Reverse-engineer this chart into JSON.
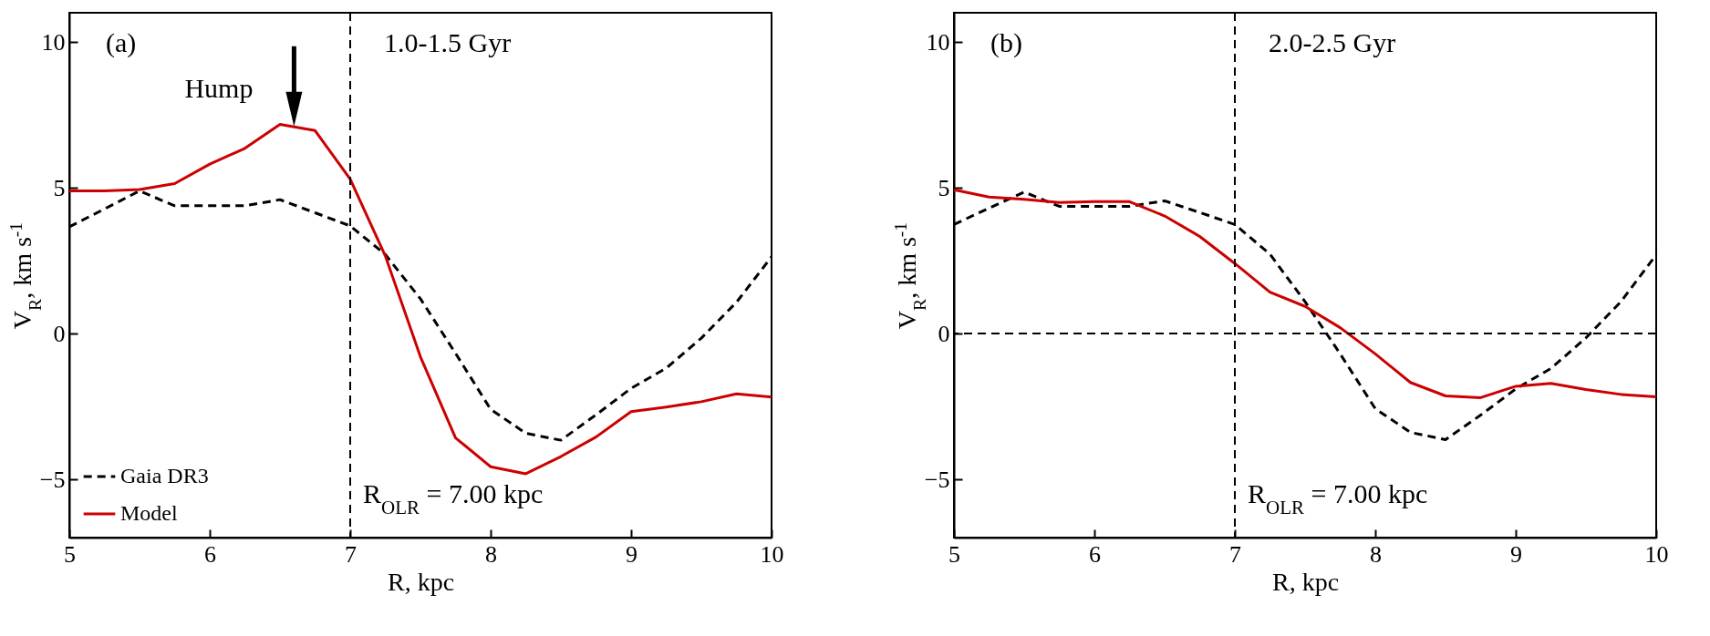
{
  "chart_data": [
    {
      "type": "line",
      "xlabel": "R, kpc",
      "ylabel": "V$_{R}$, km s$^{-1}$",
      "xlim": [
        5,
        10
      ],
      "xticks": [
        5,
        6,
        7,
        8,
        9,
        10
      ],
      "ylim": [
        -7,
        11
      ],
      "yticks": [
        -5,
        0,
        5,
        10
      ],
      "legend": "bottom left",
      "grid": false,
      "x": [
        5,
        5.25,
        5.5,
        5.75,
        6,
        6.25,
        6.5,
        6.75,
        7,
        7.25,
        7.5,
        7.75,
        8,
        8.25,
        8.5,
        8.75,
        9,
        9.25,
        9.5,
        9.75,
        10
      ],
      "series": [
        {
          "name": "Gaia DR3",
          "color": "#000000",
          "line_style": "dashed",
          "values": [
            3.66,
            4.27,
            4.89,
            4.38,
            4.38,
            4.38,
            4.59,
            4.14,
            3.69,
            2.71,
            1.19,
            -0.68,
            -2.6,
            -3.42,
            -3.66,
            -2.79,
            -1.88,
            -1.19,
            -0.16,
            1.07,
            2.63
          ]
        },
        {
          "name": "Model",
          "color": "#cc0000",
          "line_style": "solid",
          "values": [
            4.89,
            4.89,
            4.94,
            5.14,
            5.81,
            6.35,
            7.17,
            6.96,
            5.29,
            2.66,
            -0.8,
            -3.58,
            -4.57,
            -4.81,
            -4.22,
            -3.55,
            -2.68,
            -2.52,
            -2.34,
            -2.07,
            -2.18
          ]
        }
      ],
      "ref_lines": [
        {
          "axis": "x",
          "value": 7,
          "color": "#000000",
          "line_style": "dashed"
        }
      ],
      "annotations": [
        "(a)",
        "1.0-1.5 Gyr",
        "R$_{OLR}$ = 7.00 kpc",
        {
          "text": "Hump",
          "x": 6.6,
          "y": 7.1
        }
      ]
    },
    {
      "type": "line",
      "xlabel": "R, kpc",
      "ylabel": "V$_{R}$, km s$^{-1}$",
      "xlim": [
        5,
        10
      ],
      "xticks": [
        5,
        6,
        7,
        8,
        9,
        10
      ],
      "ylim": [
        -7,
        11
      ],
      "yticks": [
        -5,
        0,
        5,
        10
      ],
      "legend": "bottom left",
      "grid": false,
      "x": [
        5,
        5.25,
        5.5,
        5.75,
        6,
        6.25,
        6.5,
        6.75,
        7,
        7.25,
        7.5,
        7.75,
        8,
        8.25,
        8.5,
        8.75,
        9,
        9.25,
        9.5,
        9.75,
        10
      ],
      "series": [
        {
          "name": "Gaia DR3",
          "color": "#000000",
          "line_style": "dashed",
          "values": [
            3.74,
            4.3,
            4.85,
            4.36,
            4.36,
            4.36,
            4.55,
            4.15,
            3.74,
            2.72,
            1.09,
            -0.7,
            -2.58,
            -3.39,
            -3.64,
            -2.8,
            -1.9,
            -1.2,
            -0.15,
            1.1,
            2.7
          ]
        },
        {
          "name": "Model",
          "color": "#cc0000",
          "line_style": "solid",
          "values": [
            4.93,
            4.68,
            4.6,
            4.49,
            4.52,
            4.52,
            4.03,
            3.33,
            2.4,
            1.42,
            0.93,
            0.2,
            -0.7,
            -1.68,
            -2.14,
            -2.2,
            -1.81,
            -1.71,
            -1.92,
            -2.09,
            -2.17
          ]
        }
      ],
      "ref_lines": [
        {
          "axis": "x",
          "value": 7,
          "color": "#000000",
          "line_style": "dashed"
        },
        {
          "axis": "y",
          "value": 0,
          "color": "#000000",
          "line_style": "dashed"
        }
      ],
      "annotations": [
        "(b)",
        "2.0-2.5 Gyr",
        "R$_{OLR}$ = 7.00 kpc"
      ]
    }
  ]
}
